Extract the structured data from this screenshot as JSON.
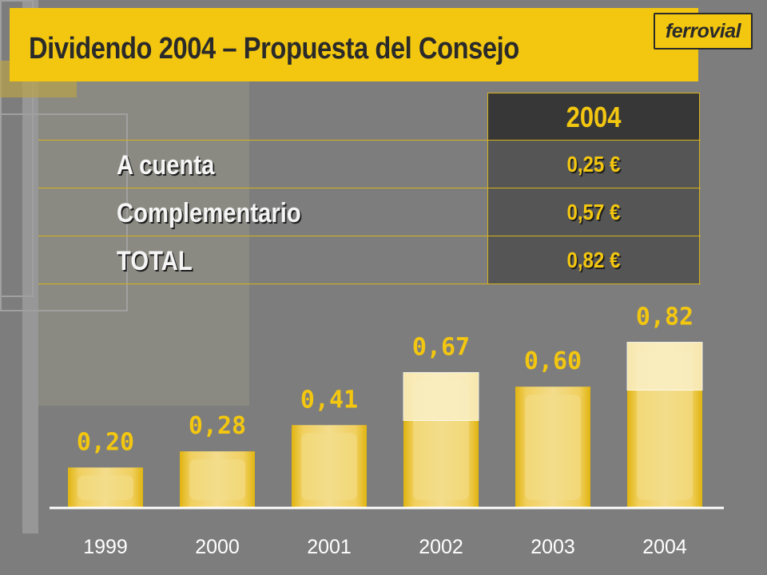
{
  "header": {
    "title": "Dividendo 2004 – Propuesta del Consejo",
    "logo_text": "ferrovial"
  },
  "summary_table": {
    "column_header": "2004",
    "rows": [
      {
        "label": "A cuenta",
        "value": "0,25 €"
      },
      {
        "label": "Complementario",
        "value": "0,57 €"
      },
      {
        "label": "TOTAL",
        "value": "0,82 €"
      }
    ]
  },
  "colors": {
    "accent_yellow": "#f3c710",
    "background_gray": "#7d7d7d",
    "dark_cell": "#373737",
    "value_cell": "#555555"
  },
  "chart_data": {
    "type": "bar",
    "categories": [
      "1999",
      "2000",
      "2001",
      "2002",
      "2003",
      "2004"
    ],
    "values": [
      0.2,
      0.28,
      0.41,
      0.67,
      0.6,
      0.82
    ],
    "data_labels": [
      "0,20",
      "0,28",
      "0,41",
      "0,67",
      "0,60",
      "0,82"
    ],
    "highlighted_categories": [
      "2002",
      "2004"
    ],
    "title": "",
    "xlabel": "",
    "ylabel": "",
    "grid": false,
    "legend": "none"
  }
}
